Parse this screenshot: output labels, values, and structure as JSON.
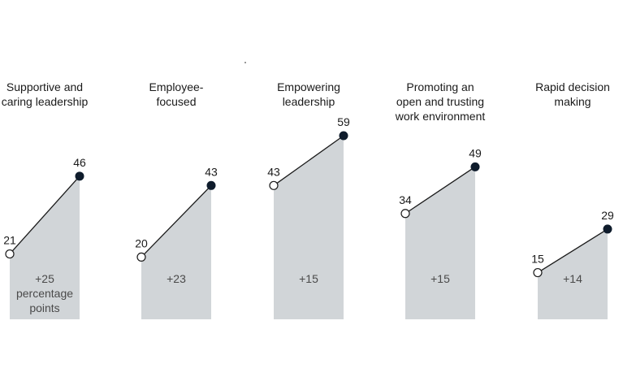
{
  "chart_data": {
    "type": "area",
    "ylim": [
      0,
      65
    ],
    "panels": [
      {
        "title": "Supportive and\ncaring leadership",
        "start": 21,
        "end": 46,
        "delta": "+25",
        "delta_note": "percentage\npoints"
      },
      {
        "title": "Employee-\nfocused",
        "start": 20,
        "end": 43,
        "delta": "+23",
        "delta_note": ""
      },
      {
        "title": "Empowering\nleadership",
        "start": 43,
        "end": 59,
        "delta": "+15",
        "delta_note": ""
      },
      {
        "title": "Promoting an\nopen and trusting\nwork environment",
        "start": 34,
        "end": 49,
        "delta": "+15",
        "delta_note": ""
      },
      {
        "title": "Rapid decision\nmaking",
        "start": 15,
        "end": 29,
        "delta": "+14",
        "delta_note": ""
      }
    ]
  },
  "colors": {
    "fill": "#d1d5d8",
    "line": "#1a1a1a",
    "end_dot": "#0f1c2c",
    "start_dot": "#ffffff",
    "text": "#1a1a1a",
    "delta_text": "#4a4a4a"
  }
}
